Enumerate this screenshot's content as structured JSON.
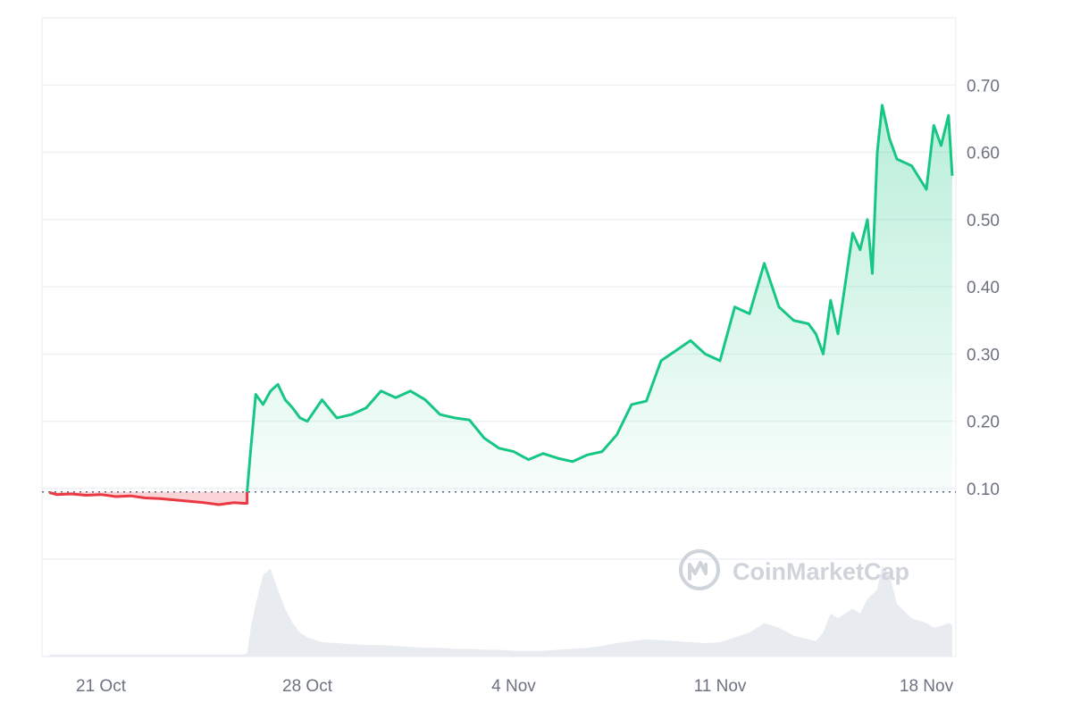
{
  "chart_data": {
    "type": "area",
    "baseline": 0.095,
    "colors": {
      "up": "#16c784",
      "down": "#ea3943",
      "grid": "#eff2f5",
      "volume": "#e8ebf0",
      "text": "#6b7280"
    },
    "y_axis": {
      "ticks": [
        "0.70",
        "0.60",
        "0.50",
        "0.40",
        "0.30",
        "0.20",
        "0.10"
      ],
      "ylim": [
        -0.005,
        0.8
      ]
    },
    "x_axis": {
      "ticks": [
        "21 Oct",
        "28 Oct",
        "4 Nov",
        "11 Nov",
        "18 Nov"
      ]
    },
    "watermark": "CoinMarketCap",
    "series": [
      {
        "x": [
          "2024-10-19 06:00",
          "2024-10-19 12:00",
          "2024-10-20 00:00",
          "2024-10-20 12:00",
          "2024-10-21 00:00",
          "2024-10-21 12:00",
          "2024-10-22 00:00",
          "2024-10-22 12:00",
          "2024-10-23 00:00",
          "2024-10-23 12:00",
          "2024-10-24 00:00",
          "2024-10-24 12:00",
          "2024-10-25 00:00",
          "2024-10-25 12:00",
          "2024-10-25 20:00",
          "2024-10-25 23:00",
          "2024-10-26 02:00",
          "2024-10-26 06:00",
          "2024-10-26 12:00",
          "2024-10-26 18:00",
          "2024-10-27 00:00",
          "2024-10-27 06:00",
          "2024-10-27 12:00",
          "2024-10-27 18:00",
          "2024-10-28 00:00",
          "2024-10-28 12:00",
          "2024-10-29 00:00",
          "2024-10-29 12:00",
          "2024-10-30 00:00",
          "2024-10-30 12:00",
          "2024-10-31 00:00",
          "2024-10-31 12:00",
          "2024-11-01 00:00",
          "2024-11-01 12:00",
          "2024-11-02 00:00",
          "2024-11-02 12:00",
          "2024-11-03 00:00",
          "2024-11-03 12:00",
          "2024-11-04 00:00",
          "2024-11-04 12:00",
          "2024-11-05 00:00",
          "2024-11-05 12:00",
          "2024-11-06 00:00",
          "2024-11-06 12:00",
          "2024-11-07 00:00",
          "2024-11-07 12:00",
          "2024-11-08 00:00",
          "2024-11-08 12:00",
          "2024-11-09 00:00",
          "2024-11-09 12:00",
          "2024-11-10 00:00",
          "2024-11-10 12:00",
          "2024-11-11 00:00",
          "2024-11-11 12:00",
          "2024-11-12 00:00",
          "2024-11-12 12:00",
          "2024-11-13 00:00",
          "2024-11-13 12:00",
          "2024-11-14 00:00",
          "2024-11-14 06:00",
          "2024-11-14 12:00",
          "2024-11-14 18:00",
          "2024-11-15 00:00",
          "2024-11-15 12:00",
          "2024-11-15 18:00",
          "2024-11-16 00:00",
          "2024-11-16 04:00",
          "2024-11-16 08:00",
          "2024-11-16 12:00",
          "2024-11-16 18:00",
          "2024-11-17 00:00",
          "2024-11-17 12:00",
          "2024-11-18 00:00",
          "2024-11-18 06:00",
          "2024-11-18 12:00",
          "2024-11-18 18:00",
          "2024-11-18 21:00"
        ],
        "values": [
          0.094,
          0.091,
          0.092,
          0.09,
          0.091,
          0.088,
          0.089,
          0.086,
          0.085,
          0.083,
          0.081,
          0.079,
          0.076,
          0.079,
          0.078,
          0.078,
          0.16,
          0.24,
          0.225,
          0.245,
          0.255,
          0.232,
          0.22,
          0.205,
          0.2,
          0.232,
          0.205,
          0.21,
          0.22,
          0.245,
          0.235,
          0.245,
          0.232,
          0.21,
          0.205,
          0.202,
          0.175,
          0.16,
          0.155,
          0.143,
          0.152,
          0.145,
          0.14,
          0.15,
          0.155,
          0.18,
          0.225,
          0.23,
          0.29,
          0.305,
          0.32,
          0.3,
          0.29,
          0.37,
          0.36,
          0.435,
          0.37,
          0.35,
          0.345,
          0.33,
          0.3,
          0.38,
          0.33,
          0.48,
          0.455,
          0.5,
          0.42,
          0.6,
          0.67,
          0.62,
          0.59,
          0.58,
          0.545,
          0.64,
          0.61,
          0.655,
          0.565
        ],
        "volume": [
          0.02,
          0.02,
          0.02,
          0.02,
          0.02,
          0.02,
          0.02,
          0.02,
          0.02,
          0.02,
          0.02,
          0.02,
          0.02,
          0.02,
          0.02,
          0.03,
          0.3,
          0.55,
          0.85,
          0.92,
          0.7,
          0.5,
          0.35,
          0.25,
          0.2,
          0.15,
          0.14,
          0.13,
          0.12,
          0.12,
          0.11,
          0.1,
          0.09,
          0.09,
          0.08,
          0.08,
          0.07,
          0.07,
          0.06,
          0.06,
          0.06,
          0.07,
          0.08,
          0.09,
          0.11,
          0.14,
          0.16,
          0.18,
          0.17,
          0.16,
          0.15,
          0.14,
          0.15,
          0.2,
          0.25,
          0.35,
          0.3,
          0.22,
          0.18,
          0.16,
          0.25,
          0.45,
          0.4,
          0.5,
          0.45,
          0.6,
          0.65,
          0.7,
          0.95,
          0.85,
          0.55,
          0.4,
          0.35,
          0.3,
          0.32,
          0.35,
          0.33
        ]
      }
    ]
  }
}
